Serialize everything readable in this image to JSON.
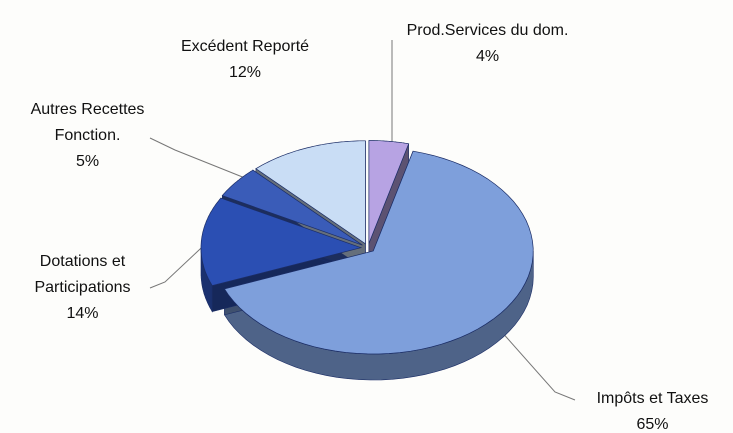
{
  "chart_data": {
    "type": "pie3d",
    "categories": [
      "Prod.Services du dom.",
      "Impôts et Taxes",
      "Dotations et Participations",
      "Autres Recettes Fonction.",
      "Excédent Reporté"
    ],
    "values": [
      4,
      65,
      14,
      5,
      12
    ],
    "value_labels": [
      "4%",
      "65%",
      "14%",
      "5%",
      "12%"
    ],
    "colors": [
      "#b7a3e3",
      "#7e9fdb",
      "#2b4fb3",
      "#3a5cb8",
      "#c9ddf5"
    ]
  }
}
